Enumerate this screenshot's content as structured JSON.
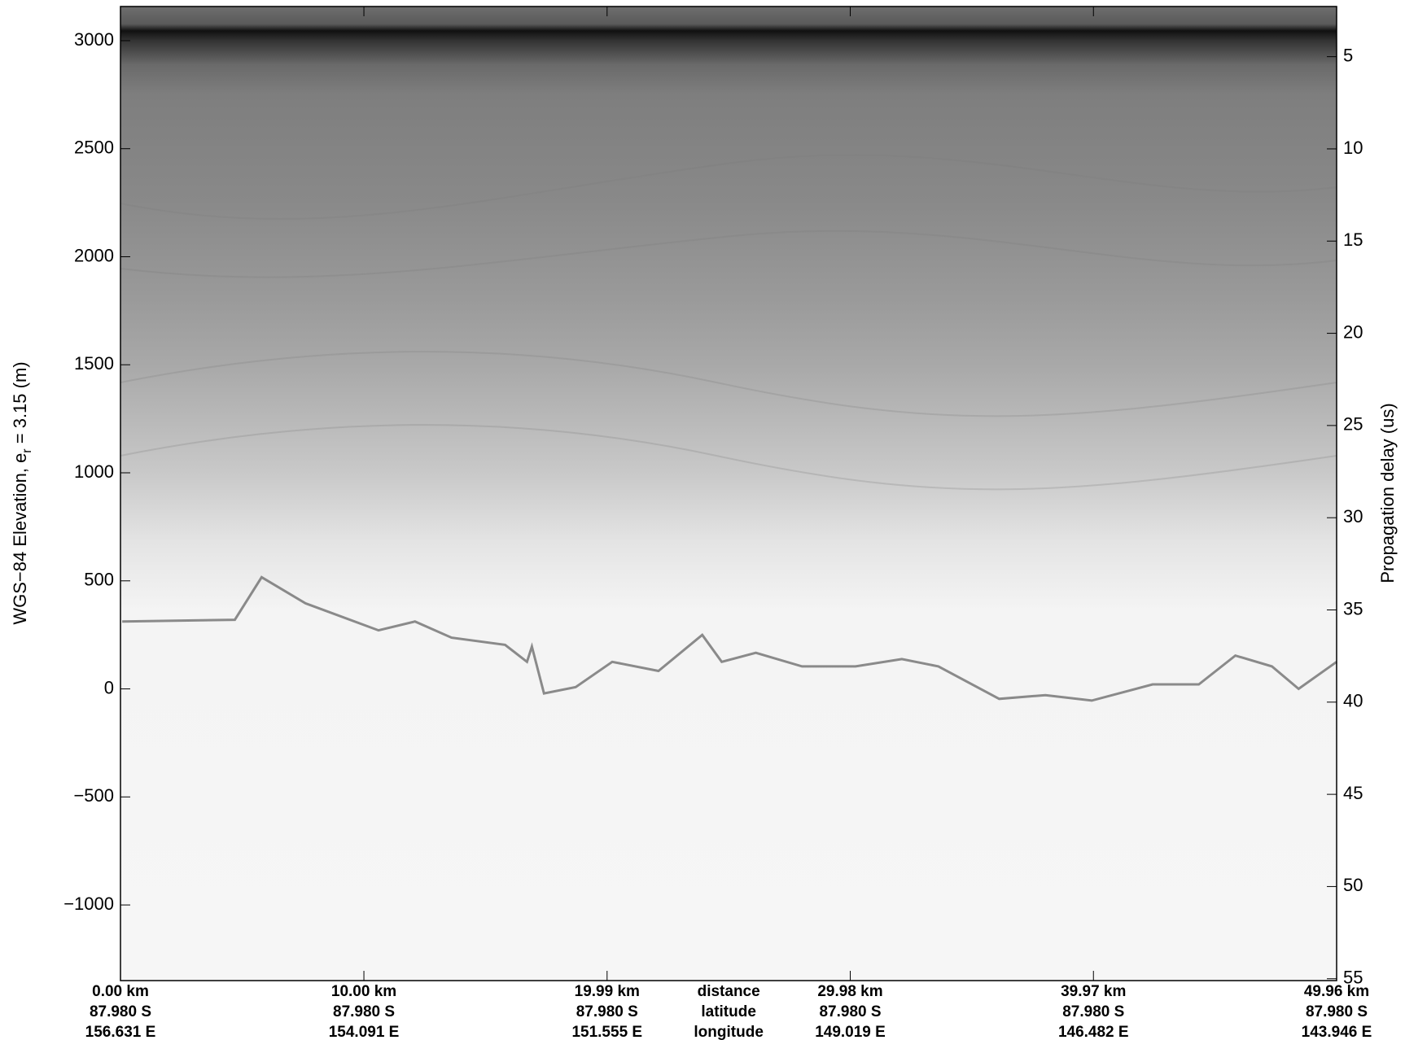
{
  "chart_data": {
    "type": "radargram",
    "y_label_parts": [
      "WGS−84 Elevation, e",
      "r",
      " = 3.15 (m)"
    ],
    "y2_label": "Propagation delay (us)",
    "xlim": [
      0,
      49.96
    ],
    "xticks": [
      {
        "value": 0,
        "label": "0.00 km"
      },
      {
        "value": 10.0,
        "label": "10.00 km"
      },
      {
        "value": 19.99,
        "label": "19.99 km"
      },
      {
        "value": 29.98,
        "label": "29.98 km"
      },
      {
        "value": 39.97,
        "label": "39.97 km"
      },
      {
        "value": 49.96,
        "label": "49.96 km"
      }
    ],
    "latitudes": [
      "87.980 S",
      "87.980 S",
      "87.980 S",
      "87.980 S",
      "87.980 S",
      "87.980 S"
    ],
    "longitudes": [
      "156.631 E",
      "154.091 E",
      "151.555 E",
      "149.019 E",
      "146.482 E",
      "143.946 E"
    ],
    "row_names": [
      "distance",
      "latitude",
      "longitude"
    ],
    "ylim": [
      -1350,
      3158
    ],
    "yticks": [
      {
        "value": -1000,
        "label": "−1000"
      },
      {
        "value": -500,
        "label": "−500"
      },
      0,
      500,
      1000,
      1500,
      2000,
      2500,
      3000
    ],
    "y2lim": [
      2.28,
      55.1
    ],
    "y2ticks": [
      5,
      10,
      15,
      20,
      25,
      30,
      35,
      40,
      45,
      50,
      55
    ],
    "series": [
      {
        "color": "#6f6f6f",
        "x": [
          0.07,
          4.7,
          5.8,
          7.6,
          10.6,
          12.1,
          13.6,
          15.8,
          16.7,
          16.9,
          17.4,
          18.7,
          20.2,
          22.1,
          23.9,
          24.7,
          26.1,
          28.0,
          30.2,
          32.1,
          33.6,
          36.1,
          38.0,
          39.9,
          42.4,
          44.3,
          45.8,
          47.3,
          48.4,
          49.96
        ],
        "values": [
          312,
          320,
          517,
          396,
          271,
          312,
          237,
          204,
          125,
          196,
          -21,
          8,
          125,
          83,
          250,
          125,
          167,
          104,
          104,
          138,
          104,
          -46,
          -29,
          -54,
          21,
          21,
          154,
          104,
          0,
          125
        ]
      }
    ]
  }
}
